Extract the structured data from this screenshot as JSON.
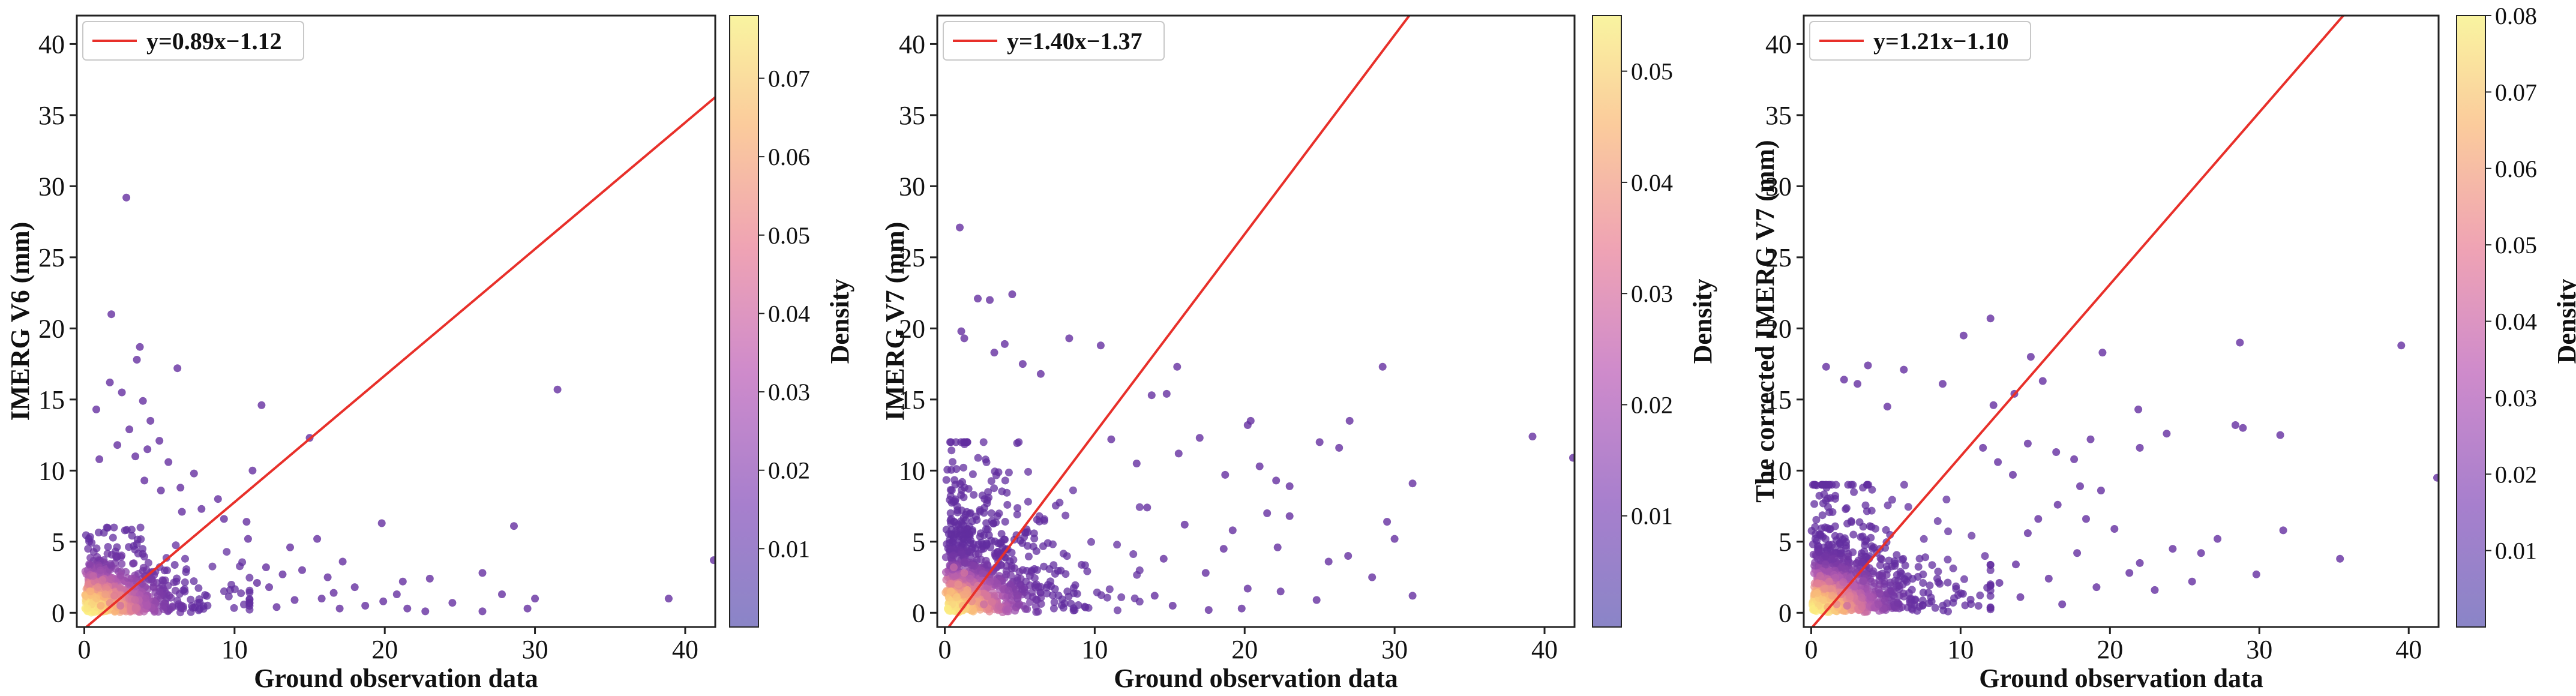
{
  "chart_data": [
    {
      "type": "scatter",
      "title": "",
      "xlabel": "Ground observation data",
      "ylabel": "IMERG V6 (mm)",
      "xlim": [
        -0.5,
        42
      ],
      "ylim": [
        -1,
        42
      ],
      "xticks": [
        "0",
        "10",
        "20",
        "30",
        "40"
      ],
      "yticks": [
        "0",
        "5",
        "10",
        "15",
        "20",
        "25",
        "30",
        "35",
        "40"
      ],
      "fit": {
        "label": "y=0.89x−1.12",
        "slope": 0.89,
        "intercept": -1.12,
        "color": "#e8302a"
      },
      "colorbar": {
        "label": "Density",
        "min": 0.0,
        "max": 0.078,
        "ticks": [
          "0.01",
          "0.02",
          "0.03",
          "0.04",
          "0.05",
          "0.06",
          "0.07"
        ],
        "tick_values": [
          0.01,
          0.02,
          0.03,
          0.04,
          0.05,
          0.06,
          0.07
        ]
      },
      "dense_cluster": {
        "x_max": 11,
        "y_max": 6,
        "x_scale": 3.0,
        "y_scale": 1.5
      },
      "points": [
        [
          0.2,
          0.3,
          0.075
        ],
        [
          0.5,
          0.6,
          0.07
        ],
        [
          0.8,
          1.0,
          0.065
        ],
        [
          1.1,
          0.5,
          0.06
        ],
        [
          1.4,
          1.3,
          0.055
        ],
        [
          0.9,
          1.8,
          0.05
        ],
        [
          1.7,
          0.7,
          0.05
        ],
        [
          0.4,
          1.5,
          0.06
        ],
        [
          2.0,
          1.2,
          0.045
        ],
        [
          1.2,
          2.3,
          0.04
        ],
        [
          2.4,
          0.5,
          0.04
        ],
        [
          0.6,
          2.6,
          0.035
        ],
        [
          2.8,
          29.2,
          0.004
        ],
        [
          1.8,
          21.0,
          0.004
        ],
        [
          3.7,
          18.7,
          0.004
        ],
        [
          6.2,
          17.2,
          0.004
        ],
        [
          3.5,
          17.8,
          0.004
        ],
        [
          1.7,
          16.2,
          0.004
        ],
        [
          2.5,
          15.5,
          0.004
        ],
        [
          3.9,
          14.9,
          0.004
        ],
        [
          0.8,
          14.3,
          0.004
        ],
        [
          11.8,
          14.6,
          0.004
        ],
        [
          4.4,
          13.5,
          0.004
        ],
        [
          3.0,
          12.9,
          0.004
        ],
        [
          5.0,
          12.1,
          0.004
        ],
        [
          2.2,
          11.8,
          0.004
        ],
        [
          4.2,
          11.5,
          0.004
        ],
        [
          3.4,
          11.0,
          0.004
        ],
        [
          1.0,
          10.8,
          0.004
        ],
        [
          5.6,
          10.6,
          0.004
        ],
        [
          11.2,
          10.0,
          0.004
        ],
        [
          7.3,
          9.8,
          0.004
        ],
        [
          4.0,
          9.3,
          0.004
        ],
        [
          6.4,
          8.8,
          0.004
        ],
        [
          8.9,
          8.0,
          0.004
        ],
        [
          5.1,
          8.6,
          0.004
        ],
        [
          10.8,
          6.4,
          0.004
        ],
        [
          10.9,
          5.2,
          0.004
        ],
        [
          9.3,
          6.6,
          0.004
        ],
        [
          7.8,
          7.3,
          0.004
        ],
        [
          6.5,
          7.1,
          0.004
        ],
        [
          15.0,
          12.3,
          0.004
        ],
        [
          19.8,
          6.3,
          0.004
        ],
        [
          28.6,
          6.1,
          0.004
        ],
        [
          31.5,
          15.7,
          0.004
        ],
        [
          30.0,
          1.0,
          0.004
        ],
        [
          38.9,
          1.0,
          0.004
        ],
        [
          41.9,
          3.7,
          0.004
        ],
        [
          26.5,
          2.8,
          0.004
        ],
        [
          23.0,
          2.4,
          0.004
        ],
        [
          21.2,
          2.2,
          0.004
        ],
        [
          18.0,
          1.8,
          0.004
        ],
        [
          16.2,
          2.5,
          0.004
        ],
        [
          14.5,
          3.0,
          0.004
        ],
        [
          13.2,
          2.7,
          0.004
        ],
        [
          12.3,
          1.8,
          0.004
        ],
        [
          12.8,
          0.4,
          0.004
        ],
        [
          14.0,
          0.9,
          0.004
        ],
        [
          15.8,
          1.0,
          0.004
        ],
        [
          17.0,
          0.3,
          0.004
        ],
        [
          18.7,
          0.5,
          0.004
        ],
        [
          19.9,
          0.8,
          0.004
        ],
        [
          21.5,
          0.3,
          0.004
        ],
        [
          22.7,
          0.1,
          0.004
        ],
        [
          24.5,
          0.7,
          0.004
        ],
        [
          26.5,
          0.1,
          0.004
        ],
        [
          27.8,
          1.3,
          0.004
        ],
        [
          29.5,
          0.3,
          0.004
        ],
        [
          13.7,
          4.6,
          0.004
        ],
        [
          15.5,
          5.2,
          0.004
        ],
        [
          17.2,
          3.6,
          0.004
        ],
        [
          12.1,
          3.2,
          0.004
        ],
        [
          11.5,
          2.1,
          0.004
        ],
        [
          16.6,
          1.4,
          0.004
        ],
        [
          20.8,
          1.3,
          0.004
        ]
      ]
    },
    {
      "type": "scatter",
      "title": "",
      "xlabel": "Ground observation data",
      "ylabel": "IMERG V7 (mm)",
      "xlim": [
        -0.5,
        42
      ],
      "ylim": [
        -1,
        42
      ],
      "xticks": [
        "0",
        "10",
        "20",
        "30",
        "40"
      ],
      "yticks": [
        "0",
        "5",
        "10",
        "15",
        "20",
        "25",
        "30",
        "35",
        "40"
      ],
      "fit": {
        "label": "y=1.40x−1.37",
        "slope": 1.4,
        "intercept": -1.37,
        "color": "#e8302a"
      },
      "colorbar": {
        "label": "Density",
        "min": 0.0,
        "max": 0.055,
        "ticks": [
          "0.01",
          "0.02",
          "0.03",
          "0.04",
          "0.05"
        ],
        "tick_values": [
          0.01,
          0.02,
          0.03,
          0.04,
          0.05
        ]
      },
      "dense_cluster": {
        "x_max": 13,
        "y_max": 12,
        "x_scale": 3.5,
        "y_scale": 3.5
      },
      "points": [
        [
          0.2,
          0.3,
          0.054
        ],
        [
          0.5,
          0.6,
          0.05
        ],
        [
          0.8,
          1.1,
          0.047
        ],
        [
          1.2,
          0.5,
          0.043
        ],
        [
          1.5,
          1.6,
          0.04
        ],
        [
          0.9,
          2.0,
          0.036
        ],
        [
          1.8,
          0.8,
          0.035
        ],
        [
          0.4,
          1.5,
          0.045
        ],
        [
          2.2,
          1.9,
          0.03
        ],
        [
          1.3,
          2.8,
          0.028
        ],
        [
          2.6,
          0.6,
          0.027
        ],
        [
          0.6,
          3.2,
          0.025
        ],
        [
          1.0,
          27.1,
          0.003
        ],
        [
          2.2,
          22.1,
          0.003
        ],
        [
          3.0,
          22.0,
          0.003
        ],
        [
          4.5,
          22.4,
          0.003
        ],
        [
          1.1,
          19.8,
          0.003
        ],
        [
          1.3,
          19.3,
          0.003
        ],
        [
          3.3,
          18.3,
          0.003
        ],
        [
          4.0,
          18.9,
          0.003
        ],
        [
          5.2,
          17.5,
          0.003
        ],
        [
          8.3,
          19.3,
          0.003
        ],
        [
          10.4,
          18.8,
          0.003
        ],
        [
          6.4,
          16.8,
          0.003
        ],
        [
          15.5,
          17.3,
          0.003
        ],
        [
          20.2,
          13.2,
          0.003
        ],
        [
          20.4,
          13.5,
          0.003
        ],
        [
          14.8,
          15.4,
          0.003
        ],
        [
          13.8,
          15.3,
          0.003
        ],
        [
          17.0,
          12.3,
          0.003
        ],
        [
          11.1,
          12.2,
          0.003
        ],
        [
          12.8,
          10.5,
          0.003
        ],
        [
          15.6,
          11.2,
          0.003
        ],
        [
          18.7,
          9.7,
          0.003
        ],
        [
          22.1,
          9.3,
          0.003
        ],
        [
          27.0,
          13.5,
          0.003
        ],
        [
          29.2,
          17.3,
          0.003
        ],
        [
          25.0,
          12.0,
          0.003
        ],
        [
          23.0,
          8.9,
          0.003
        ],
        [
          26.3,
          11.6,
          0.003
        ],
        [
          21.0,
          10.3,
          0.003
        ],
        [
          39.2,
          12.4,
          0.003
        ],
        [
          41.9,
          10.9,
          0.003
        ],
        [
          31.2,
          9.1,
          0.003
        ],
        [
          30.0,
          5.2,
          0.003
        ],
        [
          28.5,
          2.5,
          0.003
        ],
        [
          31.2,
          1.2,
          0.003
        ],
        [
          25.6,
          3.6,
          0.003
        ],
        [
          23.0,
          6.8,
          0.003
        ],
        [
          22.2,
          4.6,
          0.003
        ],
        [
          20.2,
          1.7,
          0.003
        ],
        [
          18.6,
          4.5,
          0.003
        ],
        [
          17.4,
          2.8,
          0.003
        ],
        [
          16.0,
          6.2,
          0.003
        ],
        [
          14.6,
          3.8,
          0.003
        ],
        [
          13.5,
          7.4,
          0.003
        ],
        [
          14.0,
          1.2,
          0.003
        ],
        [
          15.2,
          0.5,
          0.003
        ],
        [
          17.6,
          0.2,
          0.003
        ],
        [
          19.8,
          0.3,
          0.003
        ],
        [
          22.4,
          1.5,
          0.003
        ],
        [
          24.8,
          0.9,
          0.003
        ],
        [
          26.9,
          4.0,
          0.003
        ],
        [
          29.5,
          6.4,
          0.003
        ],
        [
          19.2,
          5.8,
          0.003
        ],
        [
          21.5,
          7.0,
          0.003
        ]
      ]
    },
    {
      "type": "scatter",
      "title": "",
      "xlabel": "Ground observation data",
      "ylabel": "The corrected IMERG V7 (mm)",
      "xlim": [
        -0.5,
        42
      ],
      "ylim": [
        -1,
        42
      ],
      "xticks": [
        "0",
        "10",
        "20",
        "30",
        "40"
      ],
      "yticks": [
        "0",
        "5",
        "10",
        "15",
        "20",
        "25",
        "30",
        "35",
        "40"
      ],
      "fit": {
        "label": "y=1.21x−1.10",
        "slope": 1.21,
        "intercept": -1.1,
        "color": "#e8302a"
      },
      "colorbar": {
        "label": "Density",
        "min": 0.0,
        "max": 0.08,
        "ticks": [
          "0.01",
          "0.02",
          "0.03",
          "0.04",
          "0.05",
          "0.06",
          "0.07",
          "0.08"
        ],
        "tick_values": [
          0.01,
          0.02,
          0.03,
          0.04,
          0.05,
          0.06,
          0.07,
          0.08
        ]
      },
      "dense_cluster": {
        "x_max": 12,
        "y_max": 9,
        "x_scale": 3.5,
        "y_scale": 2.8
      },
      "points": [
        [
          0.2,
          0.2,
          0.078
        ],
        [
          0.5,
          0.5,
          0.072
        ],
        [
          0.8,
          0.9,
          0.068
        ],
        [
          1.1,
          0.4,
          0.062
        ],
        [
          1.4,
          1.2,
          0.058
        ],
        [
          0.9,
          1.7,
          0.052
        ],
        [
          1.7,
          0.6,
          0.05
        ],
        [
          0.4,
          1.4,
          0.065
        ],
        [
          2.0,
          1.3,
          0.046
        ],
        [
          1.2,
          2.2,
          0.042
        ],
        [
          2.4,
          0.5,
          0.04
        ],
        [
          0.6,
          2.6,
          0.038
        ],
        [
          1.0,
          17.3,
          0.004
        ],
        [
          3.8,
          17.4,
          0.004
        ],
        [
          2.2,
          16.4,
          0.004
        ],
        [
          3.1,
          16.1,
          0.004
        ],
        [
          6.2,
          17.1,
          0.004
        ],
        [
          5.1,
          14.5,
          0.004
        ],
        [
          12.0,
          20.7,
          0.004
        ],
        [
          10.2,
          19.5,
          0.004
        ],
        [
          14.7,
          18.0,
          0.004
        ],
        [
          8.8,
          16.1,
          0.004
        ],
        [
          19.5,
          18.3,
          0.004
        ],
        [
          15.5,
          16.3,
          0.004
        ],
        [
          13.6,
          15.4,
          0.004
        ],
        [
          12.2,
          14.6,
          0.004
        ],
        [
          28.7,
          19.0,
          0.004
        ],
        [
          39.5,
          18.8,
          0.004
        ],
        [
          21.9,
          14.3,
          0.004
        ],
        [
          23.8,
          12.6,
          0.004
        ],
        [
          18.7,
          12.2,
          0.004
        ],
        [
          16.4,
          11.3,
          0.004
        ],
        [
          28.4,
          13.2,
          0.004
        ],
        [
          28.9,
          13.0,
          0.004
        ],
        [
          31.4,
          12.5,
          0.004
        ],
        [
          22.0,
          11.6,
          0.004
        ],
        [
          17.6,
          10.8,
          0.004
        ],
        [
          14.5,
          11.9,
          0.004
        ],
        [
          11.5,
          11.6,
          0.004
        ],
        [
          12.5,
          10.6,
          0.004
        ],
        [
          13.5,
          9.7,
          0.004
        ],
        [
          41.9,
          9.5,
          0.004
        ],
        [
          31.6,
          5.8,
          0.004
        ],
        [
          35.4,
          3.8,
          0.004
        ],
        [
          29.8,
          2.7,
          0.004
        ],
        [
          27.2,
          5.2,
          0.004
        ],
        [
          26.1,
          4.2,
          0.004
        ],
        [
          24.2,
          4.5,
          0.004
        ],
        [
          22.0,
          3.5,
          0.004
        ],
        [
          20.3,
          5.9,
          0.004
        ],
        [
          19.4,
          8.6,
          0.004
        ],
        [
          18.0,
          8.9,
          0.004
        ],
        [
          16.5,
          7.6,
          0.004
        ],
        [
          15.2,
          6.6,
          0.004
        ],
        [
          14.5,
          5.6,
          0.004
        ],
        [
          13.7,
          3.4,
          0.004
        ],
        [
          15.9,
          2.4,
          0.004
        ],
        [
          17.8,
          4.2,
          0.004
        ],
        [
          19.1,
          1.8,
          0.004
        ],
        [
          21.3,
          2.8,
          0.004
        ],
        [
          23.0,
          1.6,
          0.004
        ],
        [
          25.5,
          2.2,
          0.004
        ],
        [
          14.0,
          1.1,
          0.004
        ],
        [
          16.8,
          0.6,
          0.004
        ],
        [
          12.6,
          2.1,
          0.004
        ],
        [
          18.4,
          6.6,
          0.004
        ]
      ]
    }
  ]
}
